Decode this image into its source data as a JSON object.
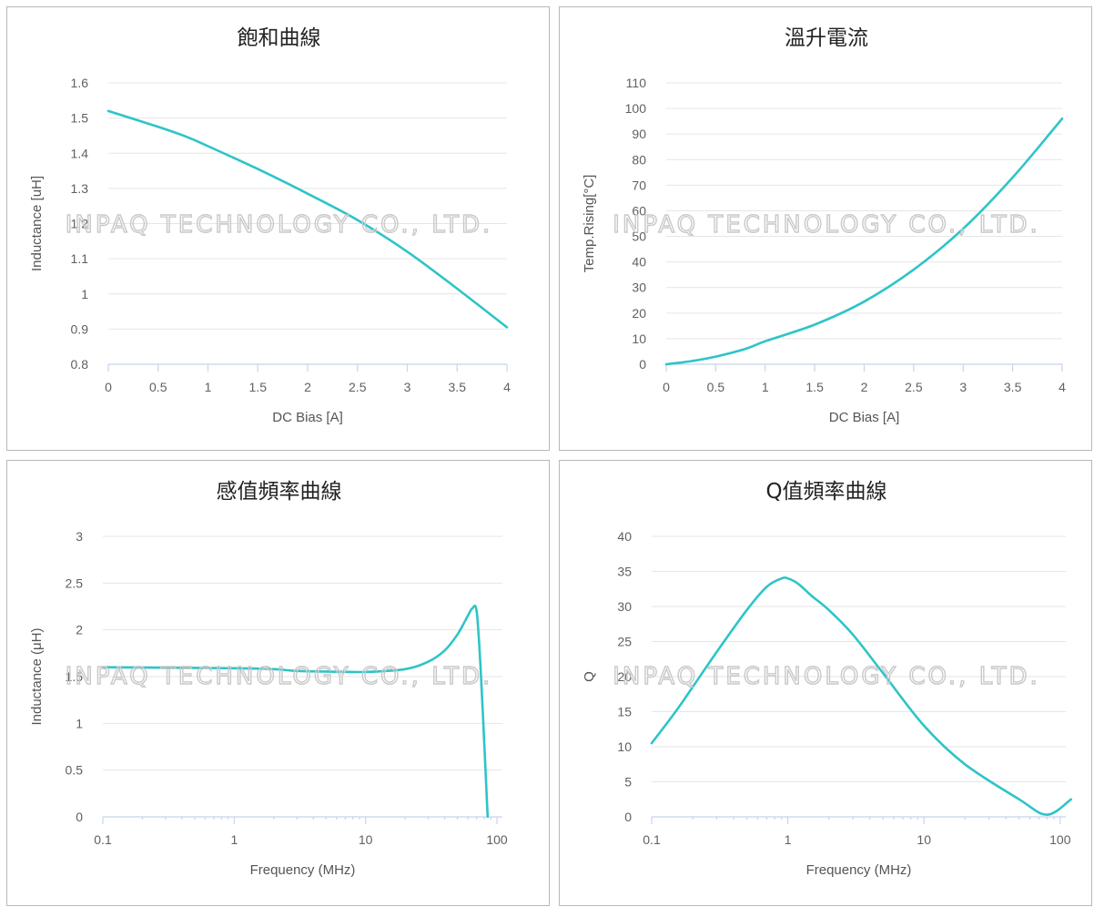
{
  "watermark": "INPAQ TECHNOLOGY CO., LTD.",
  "colors": {
    "series": "#2ec4c8",
    "grid": "#e6e6e6",
    "axis": "#c8d4ec"
  },
  "chart_data": [
    {
      "type": "line",
      "title": "飽和曲線",
      "xlabel": "DC Bias [A]",
      "ylabel": "Inductance [uH]",
      "xscale": "linear",
      "xlim": [
        0,
        4
      ],
      "ylim": [
        0.8,
        1.6
      ],
      "xticks": [
        "0",
        "0.5",
        "1",
        "1.5",
        "2",
        "2.5",
        "3",
        "3.5",
        "4"
      ],
      "yticks": [
        "0.8",
        "0.9",
        "1",
        "1.1",
        "1.2",
        "1.3",
        "1.4",
        "1.5",
        "1.6"
      ],
      "grid": true,
      "series": [
        {
          "x": [
            0,
            0.5,
            0.8,
            1.0,
            1.5,
            2.0,
            2.5,
            3.0,
            3.5,
            4.0
          ],
          "y": [
            1.52,
            1.475,
            1.445,
            1.42,
            1.355,
            1.285,
            1.21,
            1.12,
            1.015,
            0.905
          ]
        }
      ]
    },
    {
      "type": "line",
      "title": "溫升電流",
      "xlabel": "DC Bias [A]",
      "ylabel": "Temp.Rising[°C]",
      "xscale": "linear",
      "xlim": [
        0,
        4
      ],
      "ylim": [
        0,
        110
      ],
      "xticks": [
        "0",
        "0.5",
        "1",
        "1.5",
        "2",
        "2.5",
        "3",
        "3.5",
        "4"
      ],
      "yticks": [
        "0",
        "10",
        "20",
        "30",
        "40",
        "50",
        "60",
        "70",
        "80",
        "90",
        "100",
        "110"
      ],
      "grid": true,
      "series": [
        {
          "x": [
            0,
            0.25,
            0.5,
            0.8,
            1.0,
            1.5,
            2.0,
            2.5,
            3.0,
            3.5,
            4.0
          ],
          "y": [
            0,
            1.2,
            3,
            6,
            9,
            15.5,
            24.5,
            37,
            53,
            73,
            96
          ]
        }
      ]
    },
    {
      "type": "line",
      "title": "感值頻率曲線",
      "xlabel": "Frequency (MHz)",
      "ylabel": "Inductance (μH)",
      "xscale": "log",
      "xlim": [
        0.1,
        110
      ],
      "ylim": [
        0,
        3
      ],
      "xticks": [
        "0.1",
        "1",
        "10",
        "100"
      ],
      "yticks": [
        "0",
        "0.5",
        "1",
        "1.5",
        "2",
        "2.5",
        "3"
      ],
      "grid": true,
      "series": [
        {
          "x": [
            0.1,
            1,
            2,
            3,
            5,
            10,
            20,
            30,
            40,
            50,
            60,
            65,
            70,
            75,
            80,
            85
          ],
          "y": [
            1.6,
            1.59,
            1.58,
            1.56,
            1.555,
            1.55,
            1.58,
            1.66,
            1.78,
            1.95,
            2.15,
            2.23,
            2.2,
            1.6,
            0.8,
            0
          ]
        }
      ]
    },
    {
      "type": "line",
      "title": "Q值頻率曲線",
      "xlabel": "Frequency (MHz)",
      "ylabel": "Q",
      "xscale": "log",
      "xlim": [
        0.1,
        110
      ],
      "ylim": [
        0,
        40
      ],
      "xticks": [
        "0.1",
        "1",
        "10",
        "100"
      ],
      "yticks": [
        "0",
        "5",
        "10",
        "15",
        "20",
        "25",
        "30",
        "35",
        "40"
      ],
      "grid": true,
      "series": [
        {
          "x": [
            0.1,
            0.15,
            0.2,
            0.3,
            0.5,
            0.7,
            0.9,
            1.0,
            1.2,
            1.5,
            2,
            3,
            5,
            10,
            20,
            50,
            80,
            120
          ],
          "y": [
            10.5,
            15,
            18.5,
            23.5,
            29.5,
            32.8,
            34,
            34,
            33.2,
            31.5,
            29.5,
            26,
            20.5,
            13,
            7.5,
            2.5,
            0.3,
            2.5
          ]
        }
      ]
    }
  ]
}
